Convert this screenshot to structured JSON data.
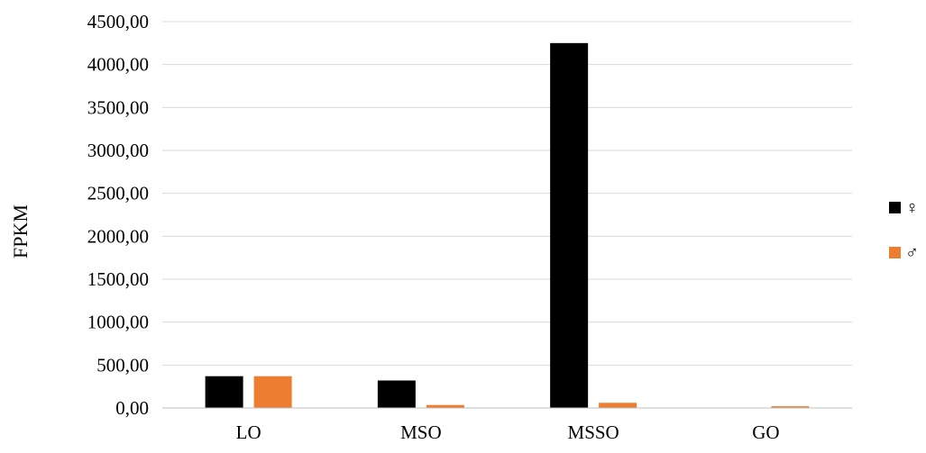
{
  "chart_data": {
    "type": "bar",
    "ylabel": "FPKM",
    "xlabel": "",
    "categories": [
      "LO",
      "MSO",
      "MSSO",
      "GO"
    ],
    "series": [
      {
        "name": "♀",
        "color": "#000000",
        "values": [
          370,
          320,
          4250,
          0
        ]
      },
      {
        "name": "♂",
        "color": "#ED7D31",
        "values": [
          370,
          35,
          60,
          20
        ]
      }
    ],
    "ylim": [
      0,
      4500
    ],
    "yticks": [
      0,
      500,
      1000,
      1500,
      2000,
      2500,
      3000,
      3500,
      4000,
      4500
    ],
    "ytick_labels": [
      "0,00",
      "500,00",
      "1000,00",
      "1500,00",
      "2000,00",
      "2500,00",
      "3000,00",
      "3500,00",
      "4000,00",
      "4500,00"
    ],
    "grid": true,
    "legend_position": "right"
  }
}
